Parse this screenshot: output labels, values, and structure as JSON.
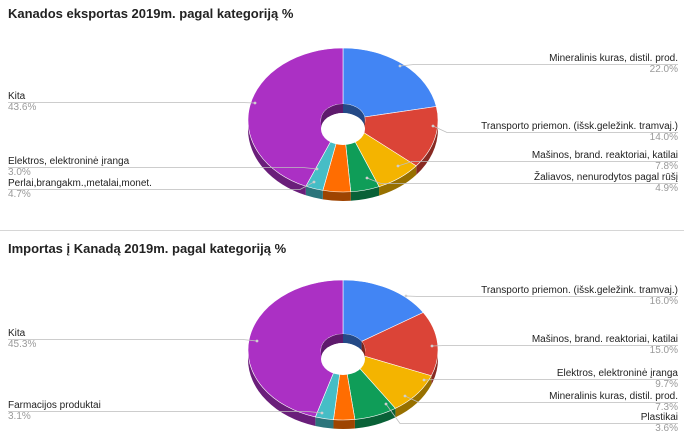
{
  "chart_data": [
    {
      "type": "pie",
      "title": "Kanados eksportas 2019m. pagal kategoriją %",
      "style": "3d-donut",
      "colors": [
        "#4285f4",
        "#db4437",
        "#f4b400",
        "#0f9d58",
        "#ff6d01",
        "#46bdc6",
        "#ab30c4"
      ],
      "slices": [
        {
          "label": "Mineralinis kuras, distil. prod.",
          "value": 22.0,
          "value_label": "22.0%"
        },
        {
          "label": "Transporto priemon. (išsk.geležink. tramvaj.)",
          "value": 14.0,
          "value_label": "14.0%"
        },
        {
          "label": "Mašinos, brand. reaktoriai, katilai",
          "value": 7.8,
          "value_label": "7.8%"
        },
        {
          "label": "Žaliavos, nenurodytos pagal rūšį",
          "value": 4.9,
          "value_label": "4.9%"
        },
        {
          "label": "Perlai,brangakm.,metalai,monet.",
          "value": 4.7,
          "value_label": "4.7%"
        },
        {
          "label": "Elektros, elektroninė įranga",
          "value": 3.0,
          "value_label": "3.0%"
        },
        {
          "label": "Kita",
          "value": 43.6,
          "value_label": "43.6%"
        }
      ]
    },
    {
      "type": "pie",
      "title": "Importas į Kanadą 2019m. pagal kategoriją %",
      "style": "3d-donut",
      "colors": [
        "#4285f4",
        "#db4437",
        "#f4b400",
        "#0f9d58",
        "#ff6d01",
        "#46bdc6",
        "#ab30c4"
      ],
      "slices": [
        {
          "label": "Transporto priemon. (išsk.geležink. tramvaj.)",
          "value": 16.0,
          "value_label": "16.0%"
        },
        {
          "label": "Mašinos, brand. reaktoriai, katilai",
          "value": 15.0,
          "value_label": "15.0%"
        },
        {
          "label": "Elektros, elektroninė įranga",
          "value": 9.7,
          "value_label": "9.7%"
        },
        {
          "label": "Mineralinis kuras, distil. prod.",
          "value": 7.3,
          "value_label": "7.3%"
        },
        {
          "label": "Plastikai",
          "value": 3.6,
          "value_label": "3.6%"
        },
        {
          "label": "Farmacijos produktai",
          "value": 3.1,
          "value_label": "3.1%"
        },
        {
          "label": "Kita",
          "value": 45.3,
          "value_label": "45.3%"
        }
      ]
    }
  ]
}
